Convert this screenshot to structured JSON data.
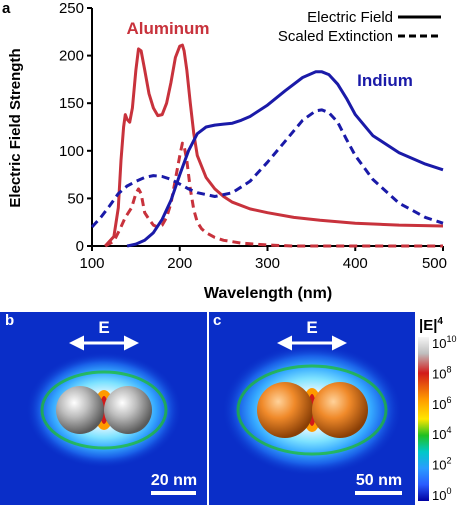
{
  "panel_labels": {
    "a": "a",
    "b": "b",
    "c": "c"
  },
  "colors": {
    "aluminum": "#c8323c",
    "indium": "#1a1aa8",
    "axis": "#000000",
    "field_background": "#0a2ec8",
    "scale_arrow": "#ffffff",
    "aluminum_sphere": "#9a9a9a",
    "indium_sphere": "#f08a2a"
  },
  "chart_data": {
    "type": "line",
    "xlabel": "Wavelength (nm)",
    "ylabel": "Electric Field Strength",
    "xlim": [
      100,
      500
    ],
    "ylim": [
      0,
      250
    ],
    "xticks": [
      "100",
      "200",
      "300",
      "400",
      "500"
    ],
    "yticks": [
      "0",
      "50",
      "100",
      "150",
      "200",
      "250"
    ],
    "legend": {
      "placement": "top-right",
      "entries": [
        {
          "label": "Electric Field",
          "style": "solid"
        },
        {
          "label": "Scaled Extinction",
          "style": "dashed"
        }
      ]
    },
    "annotations": [
      {
        "text": "Aluminum",
        "color": "#c8323c"
      },
      {
        "text": "Indium",
        "color": "#1a1aa8"
      }
    ],
    "series": [
      {
        "metal": "Aluminum",
        "kind": "Electric Field",
        "color": "#c8323c",
        "style": "solid",
        "x": [
          115,
          125,
          130,
          133,
          136,
          138,
          140,
          143,
          146,
          150,
          153,
          156,
          160,
          165,
          170,
          175,
          180,
          185,
          190,
          195,
          200,
          203,
          205,
          208,
          212,
          216,
          220,
          230,
          240,
          250,
          260,
          280,
          300,
          330,
          360,
          400,
          450,
          500
        ],
        "y": [
          0,
          10,
          40,
          90,
          125,
          138,
          133,
          130,
          145,
          185,
          207,
          205,
          185,
          160,
          145,
          137,
          138,
          150,
          172,
          198,
          210,
          211,
          205,
          185,
          150,
          118,
          95,
          72,
          60,
          52,
          46,
          39,
          35,
          30,
          27,
          24,
          22,
          21
        ]
      },
      {
        "metal": "Aluminum",
        "kind": "Scaled Extinction",
        "color": "#c8323c",
        "style": "dashed",
        "x": [
          115,
          125,
          132,
          138,
          145,
          150,
          153,
          156,
          160,
          165,
          170,
          175,
          180,
          185,
          190,
          195,
          200,
          203,
          205,
          208,
          212,
          216,
          220,
          225,
          230,
          240,
          250,
          270,
          300,
          330,
          360,
          400,
          450,
          500
        ],
        "y": [
          0,
          5,
          18,
          30,
          40,
          55,
          60,
          55,
          35,
          28,
          22,
          20,
          22,
          30,
          45,
          70,
          95,
          108,
          105,
          90,
          60,
          38,
          25,
          18,
          14,
          9,
          6,
          3,
          1,
          0,
          0,
          0,
          0,
          0
        ]
      },
      {
        "metal": "Indium",
        "kind": "Electric Field",
        "color": "#1a1aa8",
        "style": "solid",
        "x": [
          140,
          150,
          160,
          170,
          180,
          190,
          200,
          210,
          220,
          230,
          240,
          250,
          260,
          270,
          280,
          300,
          320,
          340,
          355,
          362,
          370,
          380,
          390,
          400,
          420,
          450,
          480,
          500
        ],
        "y": [
          0,
          2,
          6,
          14,
          28,
          48,
          75,
          100,
          118,
          125,
          127,
          128,
          129,
          132,
          136,
          148,
          163,
          177,
          183,
          183,
          180,
          170,
          155,
          138,
          116,
          98,
          86,
          80
        ]
      },
      {
        "metal": "Indium",
        "kind": "Scaled Extinction",
        "color": "#1a1aa8",
        "style": "dashed",
        "x": [
          100,
          110,
          120,
          130,
          140,
          150,
          160,
          170,
          180,
          190,
          200,
          210,
          220,
          240,
          260,
          280,
          300,
          320,
          340,
          355,
          362,
          370,
          380,
          390,
          400,
          420,
          450,
          480,
          500
        ],
        "y": [
          20,
          30,
          42,
          55,
          63,
          68,
          72,
          74,
          73,
          70,
          65,
          60,
          56,
          52,
          56,
          68,
          88,
          110,
          132,
          142,
          143,
          140,
          130,
          112,
          95,
          70,
          45,
          30,
          24
        ]
      }
    ]
  },
  "panel_b": {
    "vector_label": "E",
    "scale_bar": "20 nm",
    "sphere_color": "#9a9a9a"
  },
  "panel_c": {
    "vector_label": "E",
    "scale_bar": "50 nm",
    "sphere_color": "#f08a2a"
  },
  "colorbar": {
    "title": "|E|",
    "title_power": "4",
    "tick_base": "10",
    "tick_exponents": [
      "10",
      "8",
      "6",
      "4",
      "2",
      "0"
    ],
    "stops": [
      "#f5f5f5",
      "#d21a1a",
      "#ff9a00",
      "#ffe600",
      "#20c020",
      "#00c8c8",
      "#2a5cff",
      "#0000a0"
    ]
  }
}
